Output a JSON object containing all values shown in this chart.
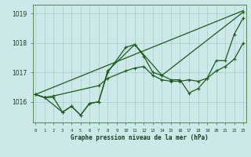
{
  "background_color": "#cce8e8",
  "grid_color": "#aacccc",
  "line_color": "#1a5c1a",
  "title": "Graphe pression niveau de la mer (hPa)",
  "ylim": [
    1015.3,
    1019.3
  ],
  "yticks": [
    1016,
    1017,
    1018,
    1019
  ],
  "series": [
    {
      "x": [
        0,
        23
      ],
      "y": [
        1016.25,
        1019.1
      ],
      "marker": null,
      "linewidth": 0.9
    },
    {
      "x": [
        0,
        1,
        2,
        3,
        4,
        5,
        6,
        7,
        8,
        10,
        11,
        12,
        13,
        14,
        15,
        16,
        17,
        18,
        19,
        20,
        21,
        22,
        23
      ],
      "y": [
        1016.25,
        1016.15,
        1016.15,
        1015.65,
        1015.85,
        1015.55,
        1015.95,
        1016.0,
        1017.0,
        1017.85,
        1017.95,
        1017.55,
        1017.0,
        1016.9,
        1016.75,
        1016.75,
        1016.3,
        1016.45,
        1016.8,
        1017.4,
        1017.4,
        1018.3,
        1018.85
      ],
      "marker": "+",
      "linewidth": 0.9
    },
    {
      "x": [
        0,
        1,
        2,
        7,
        8,
        10,
        11,
        12,
        13,
        14,
        15,
        16,
        17,
        18,
        19,
        20,
        21,
        22,
        23
      ],
      "y": [
        1016.25,
        1016.15,
        1016.2,
        1016.55,
        1016.8,
        1017.05,
        1017.15,
        1017.2,
        1016.9,
        1016.75,
        1016.7,
        1016.7,
        1016.75,
        1016.7,
        1016.8,
        1017.05,
        1017.2,
        1017.45,
        1018.0
      ],
      "marker": "+",
      "linewidth": 0.9
    },
    {
      "x": [
        0,
        1,
        3,
        4,
        5,
        6,
        7,
        8,
        11,
        14,
        23
      ],
      "y": [
        1016.25,
        1016.15,
        1015.65,
        1015.85,
        1015.55,
        1015.95,
        1016.0,
        1017.05,
        1017.95,
        1016.9,
        1019.05
      ],
      "marker": "+",
      "linewidth": 0.9
    }
  ]
}
